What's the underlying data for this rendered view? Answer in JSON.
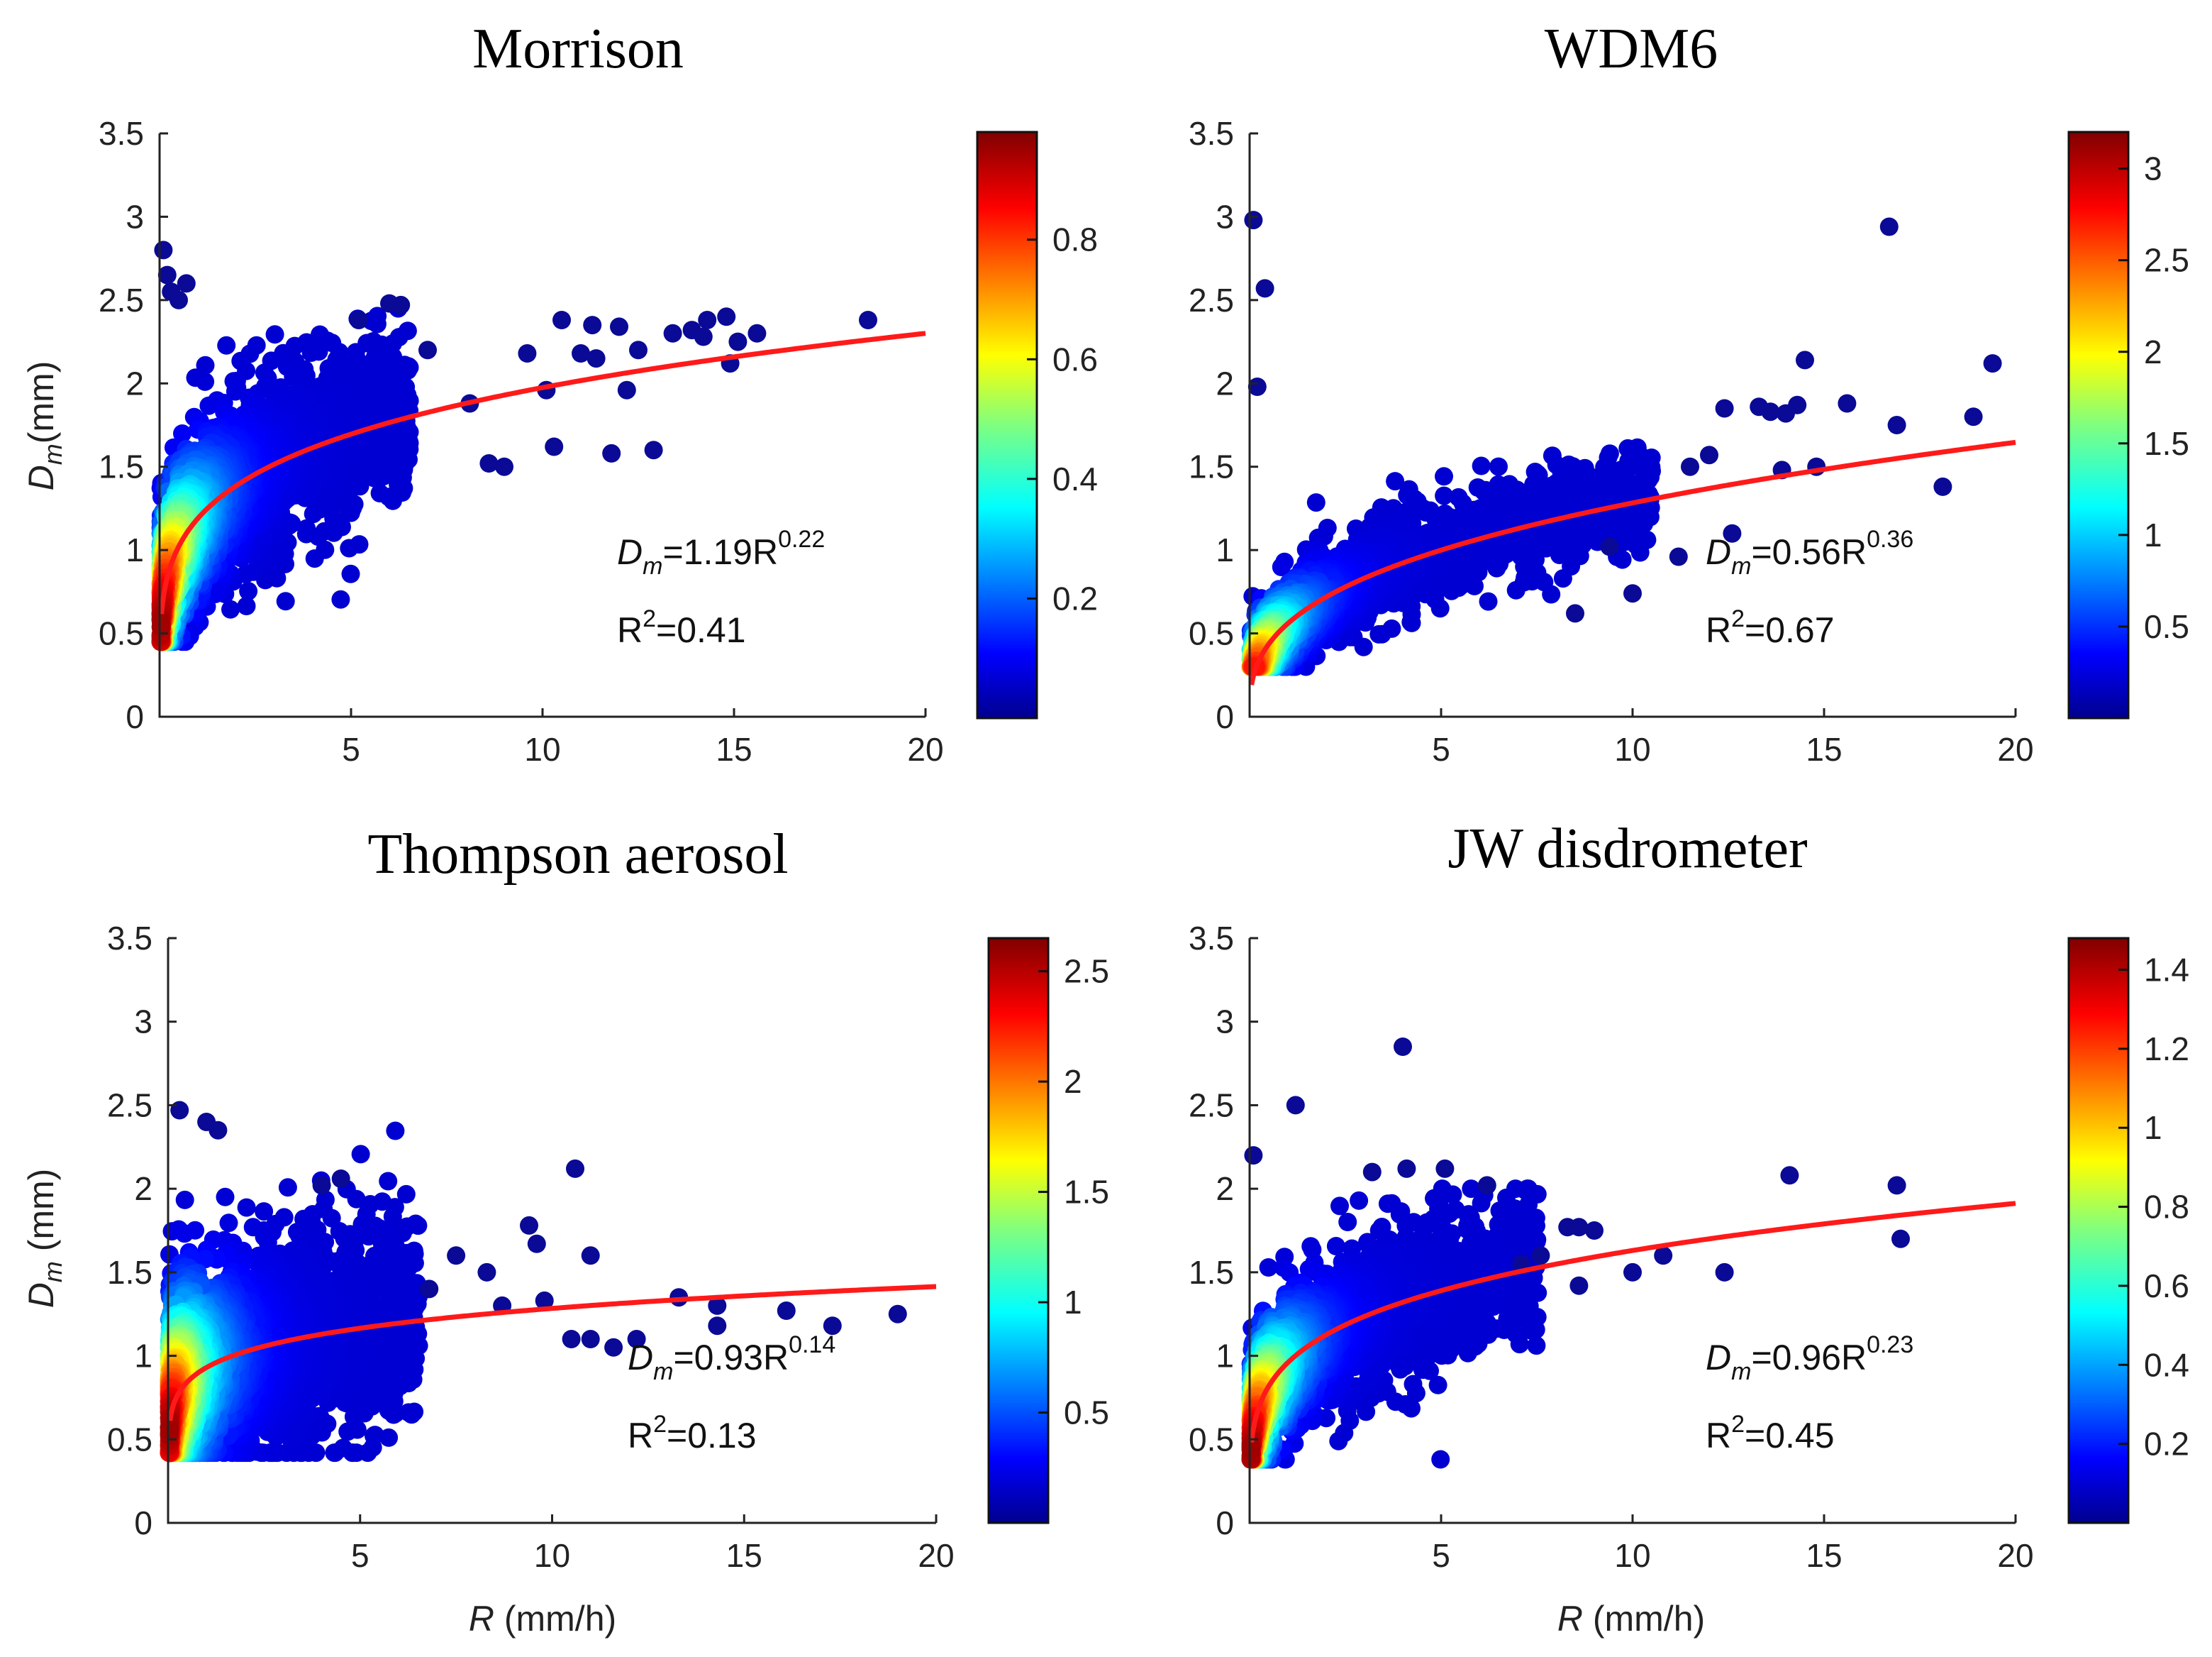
{
  "chart_data": [
    {
      "type": "scatter",
      "title": "Morrison",
      "xlabel": "",
      "ylabel_main": "D",
      "ylabel_sub": "m",
      "ylabel_unit": "(mm)",
      "xlim": [
        0,
        20
      ],
      "ylim": [
        0,
        3.5
      ],
      "xticks": [
        "5",
        "10",
        "15",
        "20"
      ],
      "yticks": [
        "0",
        "0.5",
        "1",
        "1.5",
        "2",
        "2.5",
        "3",
        "3.5"
      ],
      "fit": {
        "a": 1.19,
        "b": 0.22
      },
      "equation": {
        "lhs": "D",
        "sub": "m",
        "mid": "=1.19R",
        "exp": "0.22"
      },
      "r2": {
        "label": "R",
        "sup": "2",
        "value": "=0.41"
      },
      "colorbar": {
        "max": 0.98,
        "ticks": [
          "0.2",
          "0.4",
          "0.6",
          "0.8"
        ]
      },
      "outliers": [
        [
          0.1,
          2.8
        ],
        [
          0.2,
          2.65
        ],
        [
          0.3,
          2.55
        ],
        [
          0.5,
          2.5
        ],
        [
          0.7,
          2.6
        ],
        [
          8.6,
          1.52
        ],
        [
          9.0,
          1.5
        ],
        [
          9.6,
          2.18
        ],
        [
          10.3,
          1.62
        ],
        [
          10.5,
          2.38
        ],
        [
          11.0,
          2.18
        ],
        [
          11.3,
          2.35
        ],
        [
          12.0,
          2.34
        ],
        [
          11.8,
          1.58
        ],
        [
          12.9,
          1.6
        ],
        [
          12.5,
          2.2
        ],
        [
          13.4,
          2.3
        ],
        [
          13.9,
          2.32
        ],
        [
          14.2,
          2.28
        ],
        [
          14.3,
          2.38
        ],
        [
          14.8,
          2.4
        ],
        [
          14.9,
          2.12
        ],
        [
          15.1,
          2.25
        ],
        [
          15.6,
          2.3
        ],
        [
          18.5,
          2.38
        ],
        [
          5.2,
          2.38
        ],
        [
          6.0,
          2.48
        ],
        [
          6.3,
          2.47
        ],
        [
          7.0,
          2.2
        ],
        [
          8.1,
          1.88
        ],
        [
          10.1,
          1.96
        ],
        [
          12.2,
          1.96
        ],
        [
          11.4,
          2.15
        ]
      ]
    },
    {
      "type": "scatter",
      "title": "WDM6",
      "xlabel": "",
      "ylabel_main": "",
      "ylabel_sub": "",
      "ylabel_unit": "",
      "xlim": [
        0,
        20
      ],
      "ylim": [
        0,
        3.5
      ],
      "xticks": [
        "5",
        "10",
        "15",
        "20"
      ],
      "yticks": [
        "0",
        "0.5",
        "1",
        "1.5",
        "2",
        "2.5",
        "3",
        "3.5"
      ],
      "fit": {
        "a": 0.56,
        "b": 0.36
      },
      "equation": {
        "lhs": "D",
        "sub": "m",
        "mid": "=0.56R",
        "exp": "0.36"
      },
      "r2": {
        "label": "R",
        "sup": "2",
        "value": "=0.67"
      },
      "colorbar": {
        "max": 3.2,
        "ticks": [
          "0.5",
          "1",
          "1.5",
          "2",
          "2.5",
          "3"
        ]
      },
      "outliers": [
        [
          0.1,
          2.98
        ],
        [
          0.4,
          2.57
        ],
        [
          0.2,
          1.98
        ],
        [
          16.7,
          2.94
        ],
        [
          19.4,
          2.12
        ],
        [
          14.5,
          2.14
        ],
        [
          15.6,
          1.88
        ],
        [
          16.9,
          1.75
        ],
        [
          18.1,
          1.38
        ],
        [
          18.9,
          1.8
        ],
        [
          14.3,
          1.87
        ],
        [
          13.6,
          1.83
        ],
        [
          12.4,
          1.85
        ],
        [
          11.5,
          1.5
        ],
        [
          12.6,
          1.1
        ],
        [
          12.0,
          1.57
        ],
        [
          13.9,
          1.48
        ],
        [
          10.0,
          0.74
        ],
        [
          11.2,
          0.96
        ],
        [
          8.5,
          0.62
        ],
        [
          9.4,
          1.02
        ],
        [
          13.3,
          1.86
        ],
        [
          14.8,
          1.5
        ],
        [
          14.0,
          1.82
        ]
      ]
    },
    {
      "type": "scatter",
      "title": "Thompson aerosol",
      "xlabel_main": "R",
      "xlabel_unit": " (mm/h)",
      "ylabel_main": "D",
      "ylabel_sub": "m",
      "ylabel_unit": " (mm)",
      "xlim": [
        0,
        20
      ],
      "ylim": [
        0,
        3.5
      ],
      "xticks": [
        "5",
        "10",
        "15",
        "20"
      ],
      "yticks": [
        "0",
        "0.5",
        "1",
        "1.5",
        "2",
        "2.5",
        "3",
        "3.5"
      ],
      "fit": {
        "a": 0.93,
        "b": 0.14
      },
      "equation": {
        "lhs": "D",
        "sub": "m",
        "mid": "=0.93R",
        "exp": "0.14"
      },
      "r2": {
        "label": "R",
        "sup": "2",
        "value": "=0.13"
      },
      "colorbar": {
        "max": 2.65,
        "ticks": [
          "0.5",
          "1",
          "1.5",
          "2",
          "2.5"
        ]
      },
      "outliers": [
        [
          0.3,
          2.47
        ],
        [
          1.0,
          2.4
        ],
        [
          1.3,
          2.35
        ],
        [
          4.0,
          2.02
        ],
        [
          4.5,
          2.06
        ],
        [
          9.4,
          1.78
        ],
        [
          9.6,
          1.67
        ],
        [
          10.6,
          2.12
        ],
        [
          11.0,
          1.6
        ],
        [
          10.5,
          1.1
        ],
        [
          11.0,
          1.1
        ],
        [
          11.6,
          1.05
        ],
        [
          12.2,
          1.1
        ],
        [
          13.3,
          1.35
        ],
        [
          14.3,
          1.3
        ],
        [
          14.3,
          1.18
        ],
        [
          16.1,
          1.27
        ],
        [
          17.3,
          1.18
        ],
        [
          19.0,
          1.25
        ],
        [
          9.8,
          1.33
        ],
        [
          8.3,
          1.5
        ],
        [
          8.7,
          1.3
        ],
        [
          7.5,
          1.6
        ],
        [
          6.8,
          1.4
        ]
      ]
    },
    {
      "type": "scatter",
      "title": "JW disdrometer",
      "xlabel_main": "R",
      "xlabel_unit": " (mm/h)",
      "ylabel_main": "",
      "ylabel_sub": "",
      "ylabel_unit": "",
      "xlim": [
        0,
        20
      ],
      "ylim": [
        0,
        3.5
      ],
      "xticks": [
        "5",
        "10",
        "15",
        "20"
      ],
      "yticks": [
        "0",
        "0.5",
        "1",
        "1.5",
        "2",
        "2.5",
        "3",
        "3.5"
      ],
      "fit": {
        "a": 0.96,
        "b": 0.23
      },
      "equation": {
        "lhs": "D",
        "sub": "m",
        "mid": "=0.96R",
        "exp": "0.23"
      },
      "r2": {
        "label": "R",
        "sup": "2",
        "value": "=0.45"
      },
      "colorbar": {
        "max": 1.48,
        "ticks": [
          "0.2",
          "0.4",
          "0.6",
          "0.8",
          "1",
          "1.2",
          "1.4"
        ]
      },
      "outliers": [
        [
          0.1,
          2.2
        ],
        [
          1.2,
          2.5
        ],
        [
          4.0,
          2.85
        ],
        [
          3.2,
          2.1
        ],
        [
          4.1,
          2.12
        ],
        [
          5.1,
          2.12
        ],
        [
          6.2,
          2.02
        ],
        [
          8.3,
          1.77
        ],
        [
          8.6,
          1.77
        ],
        [
          9.0,
          1.75
        ],
        [
          8.6,
          1.42
        ],
        [
          10.0,
          1.5
        ],
        [
          10.8,
          1.6
        ],
        [
          12.4,
          1.5
        ],
        [
          14.1,
          2.08
        ],
        [
          16.9,
          2.02
        ],
        [
          17.0,
          1.7
        ],
        [
          7.1,
          1.55
        ],
        [
          7.6,
          1.6
        ]
      ]
    }
  ]
}
